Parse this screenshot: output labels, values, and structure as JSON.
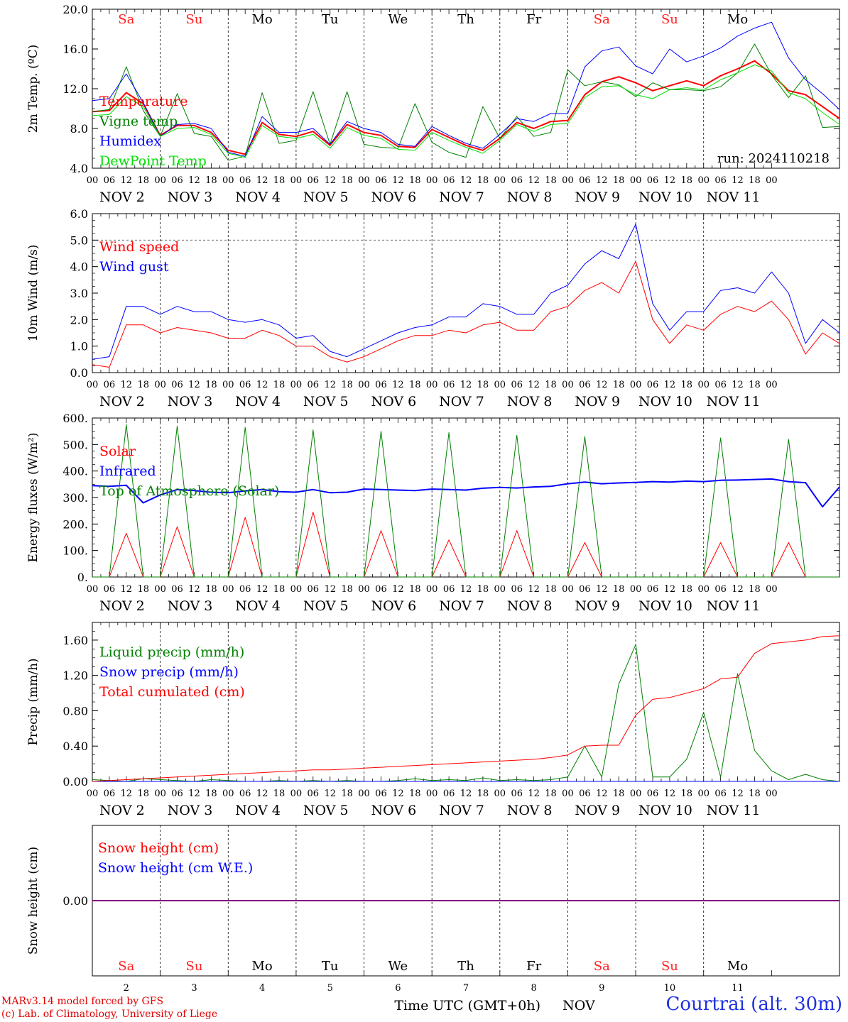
{
  "chart_data": {
    "type": "line",
    "run_label": "run: 2024110218",
    "days": {
      "weekday": [
        "Sa",
        "Su",
        "Mo",
        "Tu",
        "We",
        "Th",
        "Fr",
        "Sa",
        "Su",
        "Mo"
      ],
      "weekend": [
        true,
        true,
        false,
        false,
        false,
        false,
        false,
        true,
        true,
        false
      ],
      "date_label": [
        "NOV  2",
        "NOV  3",
        "NOV  4",
        "NOV  5",
        "NOV  6",
        "NOV  7",
        "NOV  8",
        "NOV  9",
        "NOV 10",
        "NOV 11"
      ],
      "day_num": [
        "2",
        "3",
        "4",
        "5",
        "6",
        "7",
        "8",
        "9",
        "10",
        "11"
      ]
    },
    "hour_ticks": [
      "00",
      "06",
      "12",
      "18"
    ],
    "final_tick": "00",
    "x_unit": "hours since 2024-11-02 00 UTC (6-hourly samples)",
    "panels": [
      {
        "id": "temp",
        "ylabel": "2m Temp. (ºC)",
        "ylim": [
          4,
          20
        ],
        "yticks": [
          "4.0",
          "8.0",
          "12.0",
          "16.0",
          "20.0"
        ],
        "ytick_values": [
          4,
          8,
          12,
          16,
          20
        ],
        "dashed_levels": [],
        "legend": [
          {
            "label": "Temperature",
            "color": "#ff0000"
          },
          {
            "label": "Vigne temp",
            "color": "#008000"
          },
          {
            "label": "Humidex",
            "color": "#0000ff"
          },
          {
            "label": "DewPoint Temp",
            "color": "#00e000"
          }
        ],
        "series": [
          {
            "name": "Temperature",
            "color": "#ff0000",
            "width": 2,
            "values": [
              9.7,
              9.8,
              11.6,
              10.5,
              7.3,
              8.3,
              8.3,
              7.6,
              5.8,
              5.4,
              8.6,
              7.4,
              7.2,
              7.7,
              6.3,
              8.4,
              7.6,
              7.3,
              6.2,
              6.1,
              7.9,
              7.1,
              6.3,
              5.8,
              7.0,
              8.6,
              8.0,
              8.7,
              8.8,
              11.4,
              12.7,
              13.2,
              12.6,
              11.8,
              12.3,
              12.8,
              12.3,
              13.3,
              14.0,
              14.8,
              13.5,
              11.8,
              11.4,
              10.2,
              9.0
            ]
          },
          {
            "name": "Vigne temp",
            "color": "#008000",
            "width": 1,
            "values": [
              9.7,
              9.9,
              14.2,
              9.8,
              7.2,
              11.5,
              7.5,
              7.2,
              4.8,
              5.2,
              11.6,
              6.5,
              6.8,
              11.7,
              6.4,
              11.7,
              6.4,
              6.1,
              6.0,
              10.5,
              6.6,
              5.6,
              5.1,
              10.2,
              7.0,
              9.2,
              7.2,
              7.6,
              13.9,
              12.3,
              12.7,
              12.4,
              11.2,
              12.6,
              11.9,
              11.9,
              11.8,
              12.2,
              13.6,
              16.5,
              13.4,
              11.1,
              13.3,
              8.1,
              8.2
            ]
          },
          {
            "name": "Humidex",
            "color": "#0000ff",
            "width": 1,
            "values": [
              10.8,
              11.0,
              13.5,
              10.6,
              7.2,
              8.4,
              8.5,
              8.0,
              5.6,
              5.2,
              9.2,
              7.6,
              7.6,
              8.0,
              6.4,
              8.7,
              8.0,
              7.6,
              6.4,
              6.2,
              8.2,
              7.3,
              6.5,
              6.0,
              7.4,
              9.0,
              8.7,
              9.5,
              9.5,
              14.2,
              15.8,
              16.2,
              14.3,
              13.5,
              16.0,
              14.7,
              15.3,
              16.1,
              17.3,
              18.1,
              18.7,
              15.1,
              12.9,
              11.5,
              9.9
            ]
          },
          {
            "name": "DewPoint Temp",
            "color": "#00e000",
            "width": 1,
            "values": [
              9.3,
              9.4,
              11.2,
              10.2,
              7.2,
              8.0,
              8.1,
              7.4,
              5.5,
              5.1,
              8.3,
              7.2,
              7.0,
              7.4,
              6.0,
              8.1,
              7.3,
              7.0,
              5.9,
              5.8,
              7.6,
              6.8,
              6.1,
              5.5,
              6.8,
              8.4,
              7.7,
              8.4,
              8.5,
              11.1,
              12.2,
              12.3,
              11.4,
              11.0,
              11.9,
              12.1,
              11.9,
              12.9,
              13.6,
              14.4,
              13.8,
              11.6,
              11.0,
              9.6,
              8.4
            ]
          }
        ]
      },
      {
        "id": "wind",
        "ylabel": "10m Wind (m/s)",
        "ylim": [
          0,
          6
        ],
        "yticks": [
          "0.0",
          "1.0",
          "2.0",
          "3.0",
          "4.0",
          "5.0",
          "6.0"
        ],
        "ytick_values": [
          0,
          1,
          2,
          3,
          4,
          5,
          6
        ],
        "dashed_levels": [
          5
        ],
        "legend": [
          {
            "label": "Wind speed",
            "color": "#ff0000"
          },
          {
            "label": "Wind gust",
            "color": "#0000ff"
          }
        ],
        "series": [
          {
            "name": "Wind speed",
            "color": "#ff0000",
            "width": 1,
            "values": [
              0.3,
              0.2,
              1.8,
              1.8,
              1.5,
              1.7,
              1.6,
              1.5,
              1.3,
              1.3,
              1.6,
              1.4,
              1.0,
              1.0,
              0.6,
              0.4,
              0.6,
              0.9,
              1.2,
              1.4,
              1.4,
              1.6,
              1.5,
              1.8,
              1.9,
              1.6,
              1.6,
              2.3,
              2.5,
              3.1,
              3.4,
              3.0,
              4.2,
              2.0,
              1.1,
              1.8,
              1.6,
              2.2,
              2.5,
              2.3,
              2.7,
              2.0,
              0.7,
              1.5,
              1.1
            ]
          },
          {
            "name": "Wind gust",
            "color": "#0000ff",
            "width": 1,
            "values": [
              0.5,
              0.6,
              2.5,
              2.5,
              2.2,
              2.5,
              2.3,
              2.3,
              2.0,
              1.9,
              2.0,
              1.8,
              1.3,
              1.4,
              0.8,
              0.6,
              0.9,
              1.2,
              1.5,
              1.7,
              1.8,
              2.1,
              2.1,
              2.6,
              2.5,
              2.2,
              2.2,
              3.0,
              3.3,
              4.1,
              4.6,
              4.3,
              5.6,
              2.6,
              1.6,
              2.3,
              2.3,
              3.1,
              3.2,
              3.0,
              3.8,
              3.0,
              1.1,
              2.0,
              1.5
            ]
          }
        ]
      },
      {
        "id": "energy",
        "ylabel": "Energy fluxes (W/m²)",
        "ylim": [
          0,
          600
        ],
        "yticks": [
          "0.",
          "100.",
          "200.",
          "300.",
          "400.",
          "500.",
          "600."
        ],
        "ytick_values": [
          0,
          100,
          200,
          300,
          400,
          500,
          600
        ],
        "dashed_levels": [],
        "legend": [
          {
            "label": "Solar",
            "color": "#ff0000"
          },
          {
            "label": "Infrared",
            "color": "#0000ff"
          },
          {
            "label": "Top of Atmosphere (Solar)",
            "color": "#008000"
          }
        ],
        "series": [
          {
            "name": "Solar",
            "color": "#ff0000",
            "width": 1,
            "values": [
              0,
              0,
              165,
              0,
              0,
              190,
              0,
              0,
              0,
              225,
              0,
              0,
              0,
              245,
              0,
              0,
              0,
              175,
              0,
              0,
              0,
              140,
              0,
              0,
              0,
              175,
              0,
              0,
              0,
              130,
              0,
              0,
              0,
              0,
              0,
              0,
              0,
              130,
              0,
              0,
              0,
              130,
              0,
              0,
              0
            ]
          },
          {
            "name": "Infrared",
            "color": "#0000ff",
            "width": 2,
            "values": [
              345,
              342,
              346,
              280,
              310,
              330,
              326,
              320,
              318,
              325,
              330,
              322,
              320,
              330,
              318,
              320,
              332,
              330,
              328,
              326,
              332,
              330,
              328,
              335,
              338,
              336,
              340,
              342,
              352,
              358,
              352,
              355,
              357,
              360,
              358,
              362,
              360,
              365,
              366,
              368,
              370,
              360,
              356,
              265,
              340
            ]
          },
          {
            "name": "Top of Atmosphere (Solar)",
            "color": "#008000",
            "width": 1,
            "values": [
              0,
              0,
              575,
              0,
              0,
              570,
              0,
              0,
              0,
              565,
              0,
              0,
              0,
              555,
              0,
              0,
              0,
              550,
              0,
              0,
              0,
              545,
              0,
              0,
              0,
              535,
              0,
              0,
              0,
              530,
              0,
              0,
              0,
              0,
              0,
              0,
              0,
              525,
              0,
              0,
              0,
              520,
              0,
              0,
              0
            ]
          }
        ]
      },
      {
        "id": "precip",
        "ylabel": "Precip (mm/h)",
        "ylim": [
          0,
          1.8
        ],
        "yticks": [
          "0.00",
          "0.40",
          "0.80",
          "1.20",
          "1.60"
        ],
        "ytick_values": [
          0,
          0.4,
          0.8,
          1.2,
          1.6
        ],
        "dashed_levels": [],
        "legend": [
          {
            "label": "Liquid precip (mm/h)",
            "color": "#008000"
          },
          {
            "label": "Snow precip (mm/h)",
            "color": "#0000ff"
          },
          {
            "label": "Total cumulated (cm)",
            "color": "#ff0000"
          }
        ],
        "series": [
          {
            "name": "Liquid precip (mm/h)",
            "color": "#008000",
            "width": 1,
            "values": [
              0.02,
              0.01,
              0.0,
              0.03,
              0.02,
              0.01,
              0.0,
              0.02,
              0.01,
              0.0,
              0.0,
              0.01,
              0.0,
              0.01,
              0.0,
              0.01,
              0.0,
              0.0,
              0.01,
              0.03,
              0.01,
              0.02,
              0.01,
              0.04,
              0.01,
              0.02,
              0.01,
              0.02,
              0.05,
              0.4,
              0.05,
              1.1,
              1.55,
              0.05,
              0.05,
              0.25,
              0.78,
              0.05,
              1.22,
              0.35,
              0.12,
              0.02,
              0.08,
              0.02,
              0.0
            ]
          },
          {
            "name": "Snow precip (mm/h)",
            "color": "#0000ff",
            "width": 1,
            "values": [
              0,
              0,
              0,
              0,
              0,
              0,
              0,
              0,
              0,
              0,
              0,
              0,
              0,
              0,
              0,
              0,
              0,
              0,
              0,
              0,
              0,
              0,
              0,
              0,
              0,
              0,
              0,
              0,
              0,
              0,
              0,
              0,
              0,
              0,
              0,
              0,
              0,
              0,
              0,
              0,
              0,
              0,
              0,
              0,
              0
            ]
          },
          {
            "name": "Total cumulated (cm)",
            "color": "#ff0000",
            "width": 1,
            "values": [
              0.0,
              0.01,
              0.02,
              0.03,
              0.04,
              0.05,
              0.06,
              0.07,
              0.08,
              0.09,
              0.1,
              0.11,
              0.12,
              0.13,
              0.13,
              0.14,
              0.15,
              0.16,
              0.17,
              0.18,
              0.19,
              0.2,
              0.21,
              0.22,
              0.23,
              0.24,
              0.25,
              0.27,
              0.3,
              0.4,
              0.41,
              0.41,
              0.75,
              0.93,
              0.95,
              1.0,
              1.05,
              1.16,
              1.18,
              1.45,
              1.56,
              1.58,
              1.6,
              1.64,
              1.65
            ]
          }
        ]
      },
      {
        "id": "snow",
        "ylabel": "Snow height (cm)",
        "ylim": [
          -1,
          1
        ],
        "yticks": [
          "0.00"
        ],
        "ytick_values": [
          0
        ],
        "dashed_levels": [],
        "legend": [
          {
            "label": "Snow height (cm)",
            "color": "#ff0000"
          },
          {
            "label": "Snow height (cm W.E.)",
            "color": "#0000ff"
          }
        ],
        "series": [
          {
            "name": "Snow height",
            "color": "#800080",
            "width": 2,
            "values": [
              0,
              0,
              0,
              0,
              0,
              0,
              0,
              0,
              0,
              0,
              0,
              0,
              0,
              0,
              0,
              0,
              0,
              0,
              0,
              0,
              0,
              0,
              0,
              0,
              0,
              0,
              0,
              0,
              0,
              0,
              0,
              0,
              0,
              0,
              0,
              0,
              0,
              0,
              0,
              0,
              0,
              0,
              0,
              0,
              0
            ]
          }
        ]
      }
    ],
    "xlabel": "Time UTC (GMT+0h)",
    "xlabel_month": "NOV",
    "credit_line1": "MARv3.14 model forced by GFS",
    "credit_line2": "(c) Lab. of Climatology, University of Liege",
    "station": "Courtrai (alt. 30m)"
  }
}
